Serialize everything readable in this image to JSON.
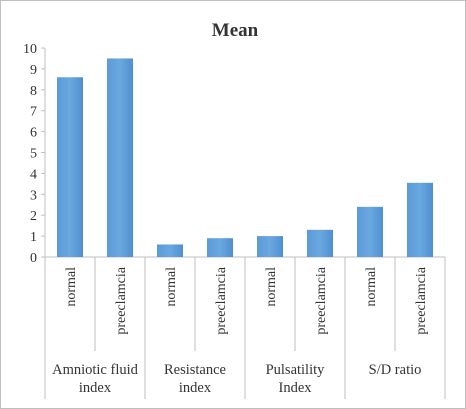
{
  "chart_data": {
    "type": "bar",
    "title": "Mean",
    "xlabel": "",
    "ylabel": "",
    "ylim": [
      0,
      10
    ],
    "yticks": [
      0,
      1,
      2,
      3,
      4,
      5,
      6,
      7,
      8,
      9,
      10
    ],
    "grid": false,
    "legend": "none",
    "bar_color": "#5b9bd5",
    "groups": [
      {
        "label_lines": [
          "Amniotic fluid",
          "index"
        ],
        "categories": [
          "normal",
          "preeclamcia"
        ],
        "values": [
          8.6,
          9.5
        ]
      },
      {
        "label_lines": [
          "Resistance",
          "index"
        ],
        "categories": [
          "normal",
          "preeclamcia"
        ],
        "values": [
          0.6,
          0.9
        ]
      },
      {
        "label_lines": [
          "Pulsatility",
          "Index"
        ],
        "categories": [
          "normal",
          "preeclamcia"
        ],
        "values": [
          1.0,
          1.3
        ]
      },
      {
        "label_lines": [
          "S/D ratio"
        ],
        "categories": [
          "normal",
          "preeclamcia"
        ],
        "values": [
          2.4,
          3.55
        ]
      }
    ]
  }
}
